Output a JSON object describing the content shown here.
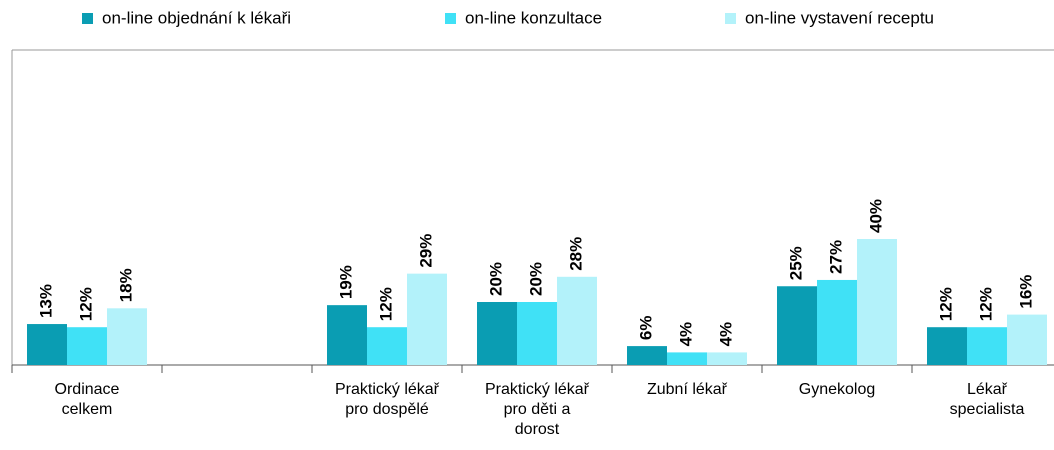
{
  "chart_data": {
    "type": "bar",
    "categories": [
      "Ordinace celkem",
      null,
      "Praktický lékař pro dospělé",
      "Praktický lékař pro děti a dorost",
      "Zubní lékař",
      "Gynekolog",
      "Lékař specialista"
    ],
    "series": [
      {
        "name": "on-line objednání k lékaři",
        "color": "#0a9db3",
        "values": [
          13,
          null,
          19,
          20,
          6,
          25,
          12
        ],
        "value_labels": [
          "13%",
          null,
          "19%",
          "20%",
          "6%",
          "25%",
          "12%"
        ]
      },
      {
        "name": "on-line konzultace",
        "color": "#40e1f6",
        "values": [
          12,
          null,
          12,
          20,
          4,
          27,
          12
        ],
        "value_labels": [
          "12%",
          null,
          "12%",
          "20%",
          "4%",
          "27%",
          "12%"
        ]
      },
      {
        "name": "on-line vystavení receptu",
        "color": "#b3f2fa",
        "values": [
          18,
          null,
          29,
          28,
          4,
          40,
          16
        ],
        "value_labels": [
          "18%",
          null,
          "29%",
          "28%",
          "4%",
          "40%",
          "16%"
        ]
      }
    ],
    "ylim": [
      0,
      100
    ]
  }
}
